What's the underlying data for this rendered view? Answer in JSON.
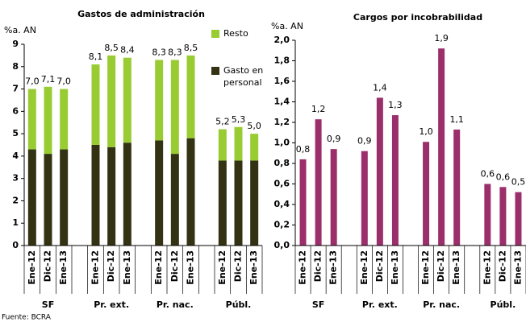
{
  "source": "Fuente: BCRA",
  "chart_data": [
    {
      "type": "stacked_bar",
      "title": "Gastos de administración",
      "y_label": "%a. AN",
      "groups": [
        {
          "label": "SF",
          "categories": [
            "Ene-12",
            "Dic-12",
            "Ene-13"
          ]
        },
        {
          "label": "Pr. ext.",
          "categories": [
            "Ene-12",
            "Dic-12",
            "Ene-13"
          ]
        },
        {
          "label": "Pr. nac.",
          "categories": [
            "Ene-12",
            "Dic-12",
            "Ene-13"
          ]
        },
        {
          "label": "Públ.",
          "categories": [
            "Ene-12",
            "Dic-12",
            "Ene-13"
          ]
        }
      ],
      "series": [
        {
          "name": "Gasto en personal",
          "color": "#333314",
          "values": [
            4.3,
            4.1,
            4.3,
            4.5,
            4.4,
            4.6,
            4.7,
            4.1,
            4.8,
            3.8,
            3.8,
            3.8
          ]
        },
        {
          "name": "Resto",
          "color": "#99cc33",
          "values": [
            2.7,
            3.0,
            2.7,
            3.6,
            4.1,
            3.8,
            3.6,
            4.2,
            3.7,
            1.4,
            1.5,
            1.2
          ]
        }
      ],
      "total_labels": [
        "7,0",
        "7,1",
        "7,0",
        "8,1",
        "8,5",
        "8,4",
        "8,3",
        "8,3",
        "8,5",
        "5,2",
        "5,3",
        "5,0"
      ],
      "ylim": [
        0,
        9
      ],
      "yticks": [
        0,
        1,
        2,
        3,
        4,
        5,
        6,
        7,
        8,
        9
      ],
      "legend": "right"
    },
    {
      "type": "bar",
      "title": "Cargos por incobrabilidad",
      "y_label": "%a. AN",
      "groups": [
        {
          "label": "SF",
          "categories": [
            "Ene-12",
            "Dic-12",
            "Ene-13"
          ]
        },
        {
          "label": "Pr. ext.",
          "categories": [
            "Ene-12",
            "Dic-12",
            "Ene-13"
          ]
        },
        {
          "label": "Pr. nac.",
          "categories": [
            "Ene-12",
            "Dic-12",
            "Ene-13"
          ]
        },
        {
          "label": "Públ.",
          "categories": [
            "Ene-12",
            "Dic-12",
            "Ene-13"
          ]
        }
      ],
      "color": "#9b2f6b",
      "values": [
        0.84,
        1.23,
        0.94,
        0.92,
        1.44,
        1.27,
        1.01,
        1.92,
        1.13,
        0.6,
        0.57,
        0.52
      ],
      "value_labels": [
        "0,8",
        "1,2",
        "0,9",
        "0,9",
        "1,4",
        "1,3",
        "1,0",
        "1,9",
        "1,1",
        "0,6",
        "0,6",
        "0,5"
      ],
      "ylim": [
        0,
        2
      ],
      "yticks": [
        {
          "value": 0,
          "label": "0,0"
        },
        {
          "value": 0.2,
          "label": "0,2"
        },
        {
          "value": 0.4,
          "label": "0,4"
        },
        {
          "value": 0.6,
          "label": "0,6"
        },
        {
          "value": 0.8,
          "label": "0,8"
        },
        {
          "value": 1.0,
          "label": "1,0"
        },
        {
          "value": 1.2,
          "label": "1,2"
        },
        {
          "value": 1.4,
          "label": "1,4"
        },
        {
          "value": 1.6,
          "label": "1,6"
        },
        {
          "value": 1.8,
          "label": "1,8"
        },
        {
          "value": 2.0,
          "label": "2,0"
        }
      ]
    }
  ]
}
